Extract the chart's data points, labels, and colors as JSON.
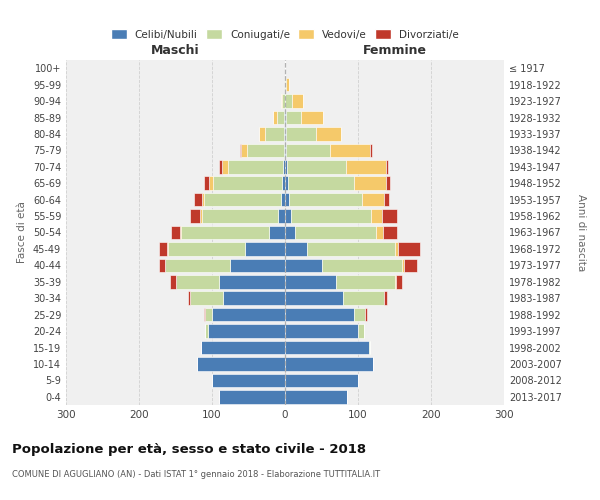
{
  "age_groups": [
    "0-4",
    "5-9",
    "10-14",
    "15-19",
    "20-24",
    "25-29",
    "30-34",
    "35-39",
    "40-44",
    "45-49",
    "50-54",
    "55-59",
    "60-64",
    "65-69",
    "70-74",
    "75-79",
    "80-84",
    "85-89",
    "90-94",
    "95-99",
    "100+"
  ],
  "birth_years": [
    "2013-2017",
    "2008-2012",
    "2003-2007",
    "1998-2002",
    "1993-1997",
    "1988-1992",
    "1983-1987",
    "1978-1982",
    "1973-1977",
    "1968-1972",
    "1963-1967",
    "1958-1962",
    "1953-1957",
    "1948-1952",
    "1943-1947",
    "1938-1942",
    "1933-1937",
    "1928-1932",
    "1923-1927",
    "1918-1922",
    "≤ 1917"
  ],
  "males": {
    "celibi": [
      90,
      100,
      120,
      115,
      105,
      100,
      85,
      90,
      75,
      55,
      22,
      9,
      6,
      4,
      3,
      2,
      2,
      1,
      0,
      0,
      0
    ],
    "coniugati": [
      0,
      0,
      0,
      0,
      5,
      10,
      45,
      60,
      90,
      105,
      120,
      105,
      105,
      95,
      75,
      50,
      25,
      10,
      4,
      0,
      0
    ],
    "vedovi": [
      0,
      0,
      0,
      0,
      0,
      0,
      0,
      0,
      0,
      1,
      2,
      2,
      3,
      5,
      8,
      8,
      8,
      5,
      2,
      0,
      0
    ],
    "divorziati": [
      0,
      0,
      0,
      0,
      0,
      1,
      3,
      8,
      8,
      12,
      12,
      14,
      10,
      7,
      5,
      2,
      0,
      0,
      0,
      0,
      0
    ]
  },
  "females": {
    "nubili": [
      85,
      100,
      120,
      115,
      100,
      95,
      80,
      70,
      50,
      30,
      14,
      8,
      5,
      4,
      3,
      2,
      2,
      2,
      0,
      0,
      0
    ],
    "coniugate": [
      0,
      0,
      0,
      2,
      8,
      15,
      55,
      80,
      110,
      120,
      110,
      110,
      100,
      90,
      80,
      60,
      40,
      20,
      10,
      2,
      0
    ],
    "vedove": [
      0,
      0,
      0,
      0,
      0,
      0,
      0,
      2,
      3,
      5,
      10,
      15,
      30,
      45,
      55,
      55,
      35,
      30,
      15,
      3,
      0
    ],
    "divorziate": [
      0,
      0,
      0,
      0,
      0,
      2,
      5,
      8,
      18,
      30,
      20,
      20,
      8,
      5,
      3,
      2,
      0,
      0,
      0,
      0,
      0
    ]
  },
  "colors": {
    "celibi": "#4a7db5",
    "coniugati": "#c5d9a0",
    "vedovi": "#f5c96a",
    "divorziati": "#c0392b"
  },
  "xlim": 300,
  "title": "Popolazione per età, sesso e stato civile - 2018",
  "subtitle": "COMUNE DI AGUGLIANO (AN) - Dati ISTAT 1° gennaio 2018 - Elaborazione TUTTITALIA.IT",
  "ylabel": "Fasce di età",
  "ylabel_right": "Anni di nascita",
  "xlabel_maschi": "Maschi",
  "xlabel_femmine": "Femmine",
  "plot_bg_color": "#f0f0f0",
  "fig_bg_color": "#ffffff",
  "grid_color": "#d0d0d0"
}
